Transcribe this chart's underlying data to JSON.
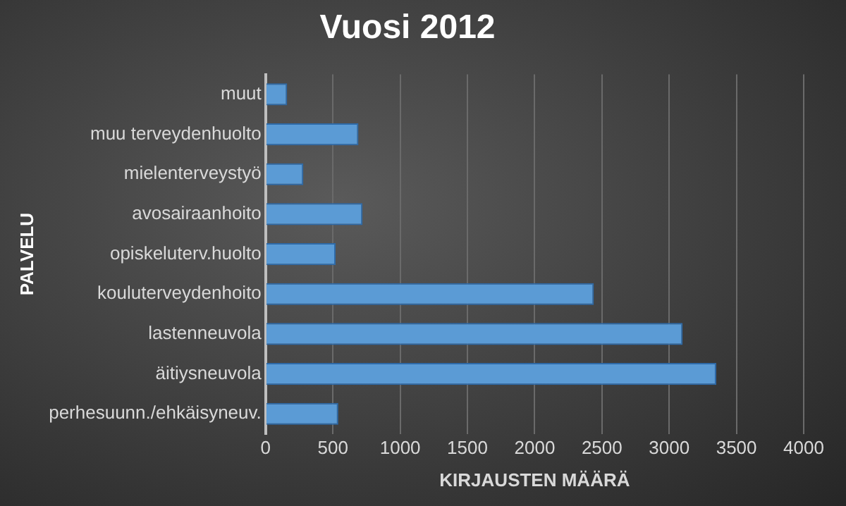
{
  "chart_data": {
    "type": "bar",
    "orientation": "horizontal",
    "title": "Vuosi 2012",
    "xlabel": "KIRJAUSTEN MÄÄRÄ",
    "ylabel": "PALVELU",
    "categories": [
      "muut",
      "muu terveydenhuolto",
      "mielenterveystyö",
      "avosairaanhoito",
      "opiskeluterv.huolto",
      "kouluterveydenhoito",
      "lastenneuvola",
      "äitiysneuvola",
      "perhesuunn./ehkäisyneuv."
    ],
    "values": [
      160,
      690,
      280,
      720,
      520,
      2440,
      3100,
      3350,
      540
    ],
    "color": "#5b9bd5",
    "xlim": [
      0,
      4000
    ],
    "xticks": [
      0,
      500,
      1000,
      1500,
      2000,
      2500,
      3000,
      3500,
      4000
    ],
    "grid": "x"
  }
}
